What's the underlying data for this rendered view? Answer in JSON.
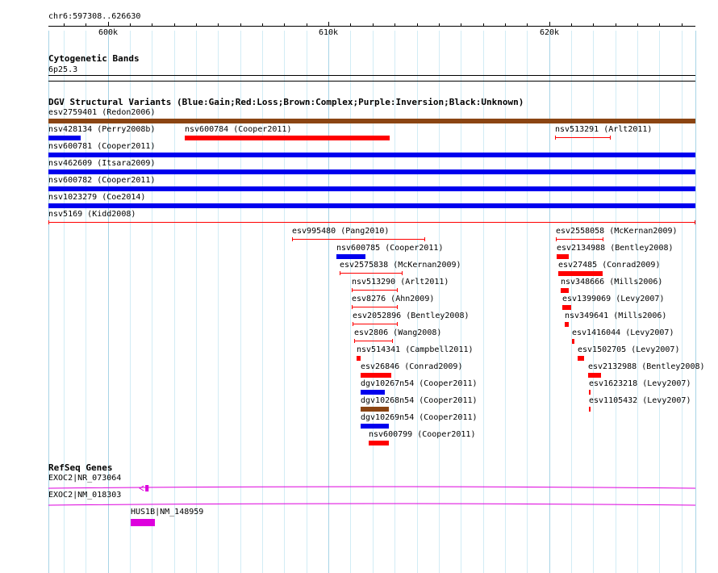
{
  "ruler": {
    "location": "chr6:597308..626630",
    "start": 597308,
    "end": 626630,
    "ticks": [
      {
        "pos": 600000,
        "label": "600k"
      },
      {
        "pos": 610000,
        "label": "610k"
      },
      {
        "pos": 620000,
        "label": "620k"
      }
    ]
  },
  "cytoband": {
    "title": "Cytogenetic Bands",
    "band": "6p25.3"
  },
  "dgv": {
    "title": "DGV Structural Variants (Blue:Gain;Red:Loss;Brown:Complex;Purple:Inversion;Black:Unknown)",
    "colors": {
      "gain": "#0000ee",
      "loss": "#ff0000",
      "complex": "#8b4513",
      "inversion": "#800080",
      "unknown": "#000000"
    },
    "variants": [
      {
        "id": "esv2759401",
        "study": "Redon2006",
        "type": "complex",
        "style": "solid",
        "start": 597308,
        "end": 626630,
        "row": 0
      },
      {
        "id": "nsv428134",
        "study": "Perry2008b",
        "type": "gain",
        "style": "solid",
        "start": 597308,
        "end": 598760,
        "row": 1
      },
      {
        "id": "nsv600784",
        "study": "Cooper2011",
        "type": "loss",
        "style": "solid",
        "start": 603480,
        "end": 612760,
        "row": 1
      },
      {
        "id": "nsv513291",
        "study": "Arlt2011",
        "type": "loss",
        "style": "thin",
        "start": 620260,
        "end": 622800,
        "row": 1
      },
      {
        "id": "nsv600781",
        "study": "Cooper2011",
        "type": "gain",
        "style": "solid",
        "start": 597308,
        "end": 626630,
        "row": 2
      },
      {
        "id": "nsv462609",
        "study": "Itsara2009",
        "type": "gain",
        "style": "solid",
        "start": 597308,
        "end": 626630,
        "row": 3
      },
      {
        "id": "nsv600782",
        "study": "Cooper2011",
        "type": "gain",
        "style": "solid",
        "start": 597308,
        "end": 626630,
        "row": 4
      },
      {
        "id": "nsv1023279",
        "study": "Coe2014",
        "type": "gain",
        "style": "solid",
        "start": 597308,
        "end": 626630,
        "row": 5
      },
      {
        "id": "nsv5169",
        "study": "Kidd2008",
        "type": "loss",
        "style": "thin",
        "start": 597308,
        "end": 626630,
        "row": 6
      },
      {
        "id": "esv995480",
        "study": "Pang2010",
        "type": "loss",
        "style": "thin",
        "start": 608360,
        "end": 614400,
        "row": 7
      },
      {
        "id": "esv2558058",
        "study": "McKernan2009",
        "type": "loss",
        "style": "thin",
        "start": 620300,
        "end": 622450,
        "row": 7
      },
      {
        "id": "nsv600785",
        "study": "Cooper2011",
        "type": "gain",
        "style": "solid",
        "start": 610360,
        "end": 611660,
        "row": 8
      },
      {
        "id": "esv2134988",
        "study": "Bentley2008",
        "type": "loss",
        "style": "solid",
        "start": 620350,
        "end": 620890,
        "row": 8
      },
      {
        "id": "esv2575838",
        "study": "McKernan2009",
        "type": "loss",
        "style": "thin",
        "start": 610500,
        "end": 613340,
        "row": 9
      },
      {
        "id": "esv27485",
        "study": "Conrad2009",
        "type": "loss",
        "style": "solid",
        "start": 620420,
        "end": 622420,
        "row": 9
      },
      {
        "id": "nsv513290",
        "study": "Arlt2011",
        "type": "loss",
        "style": "thin",
        "start": 611060,
        "end": 613160,
        "row": 10
      },
      {
        "id": "nsv348666",
        "study": "Mills2006",
        "type": "loss",
        "style": "solid",
        "start": 620540,
        "end": 620890,
        "row": 10
      },
      {
        "id": "esv8276",
        "study": "Ahn2009",
        "type": "loss",
        "style": "thin",
        "start": 611060,
        "end": 613160,
        "row": 11
      },
      {
        "id": "esv1399069",
        "study": "Levy2007",
        "type": "loss",
        "style": "solid",
        "start": 620580,
        "end": 620970,
        "row": 11
      },
      {
        "id": "esv2052896",
        "study": "Bentley2008",
        "type": "loss",
        "style": "thin",
        "start": 611100,
        "end": 613160,
        "row": 12
      },
      {
        "id": "nsv349641",
        "study": "Mills2006",
        "type": "loss",
        "style": "solid",
        "start": 620700,
        "end": 620900,
        "row": 12
      },
      {
        "id": "esv2806",
        "study": "Wang2008",
        "type": "loss",
        "style": "thin",
        "start": 611170,
        "end": 612940,
        "row": 13
      },
      {
        "id": "esv1416044",
        "study": "Levy2007",
        "type": "loss",
        "style": "solid",
        "start": 621050,
        "end": 621170,
        "row": 13
      },
      {
        "id": "nsv514341",
        "study": "Campbell2011",
        "type": "loss",
        "style": "solid",
        "start": 611260,
        "end": 611440,
        "row": 14
      },
      {
        "id": "esv1502705",
        "study": "Levy2007",
        "type": "loss",
        "style": "solid",
        "start": 621300,
        "end": 621580,
        "row": 14
      },
      {
        "id": "esv26846",
        "study": "Conrad2009",
        "type": "loss",
        "style": "solid",
        "start": 611460,
        "end": 612840,
        "row": 15
      },
      {
        "id": "esv2132988",
        "study": "Bentley2008",
        "type": "loss",
        "style": "solid",
        "start": 621760,
        "end": 622350,
        "row": 15
      },
      {
        "id": "dgv10267n54",
        "study": "Cooper2011",
        "type": "gain",
        "style": "solid",
        "start": 611460,
        "end": 612570,
        "row": 16
      },
      {
        "id": "esv1623218",
        "study": "Levy2007",
        "type": "loss",
        "style": "solid",
        "start": 621800,
        "end": 621880,
        "row": 16
      },
      {
        "id": "dgv10268n54",
        "study": "Cooper2011",
        "type": "complex",
        "style": "solid",
        "start": 611460,
        "end": 612730,
        "row": 17
      },
      {
        "id": "esv1105432",
        "study": "Levy2007",
        "type": "loss",
        "style": "solid",
        "start": 621810,
        "end": 621900,
        "row": 17
      },
      {
        "id": "dgv10269n54",
        "study": "Cooper2011",
        "type": "gain",
        "style": "solid",
        "start": 611460,
        "end": 612730,
        "row": 18
      },
      {
        "id": "nsv600799",
        "study": "Cooper2011",
        "type": "loss",
        "style": "solid",
        "start": 611840,
        "end": 612760,
        "row": 19
      }
    ]
  },
  "refseq": {
    "title": "RefSeq Genes",
    "color": "#dd00dd",
    "genes": [
      {
        "label": "EXOC2|NR_073064",
        "start": 597308,
        "end": 626630,
        "strand": "-",
        "exons": [
          [
            601700,
            601850
          ]
        ],
        "row": 0
      },
      {
        "label": "EXOC2|NM_018303",
        "start": 597308,
        "end": 626630,
        "strand": "-",
        "exons": [],
        "row": 1
      },
      {
        "label": "HUS1B|NM_148959",
        "start": 601050,
        "end": 602130,
        "strand": "+",
        "exons": [
          [
            601050,
            602130
          ]
        ],
        "row": 2
      }
    ]
  }
}
